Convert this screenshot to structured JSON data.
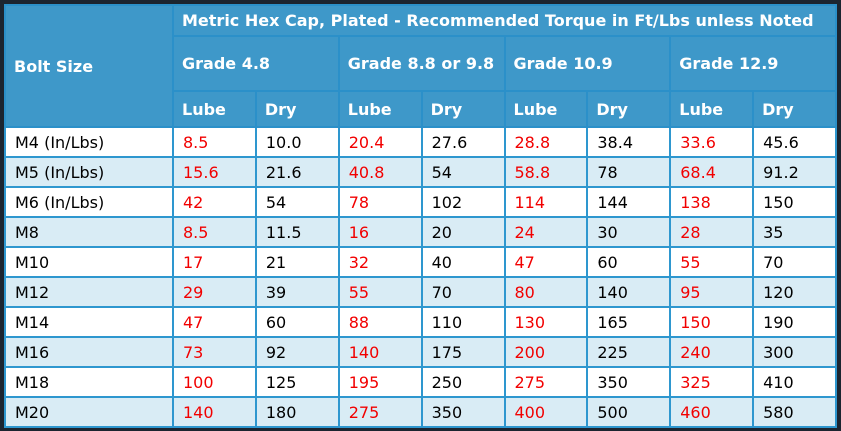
{
  "chart_data": {
    "type": "table",
    "title": "Metric Hex Cap, Plated - Recommended Torque in Ft/Lbs unless Noted",
    "corner_header": "Bolt Size",
    "grade_groups": [
      "Grade 4.8",
      "Grade 8.8 or 9.8",
      "Grade 10.9",
      "Grade 12.9"
    ],
    "sub_columns": [
      "Lube",
      "Dry",
      "Lube",
      "Dry",
      "Lube",
      "Dry",
      "Lube",
      "Dry"
    ],
    "rows": [
      {
        "bolt": "M4 (In/Lbs)",
        "values": [
          "8.5",
          "10.0",
          "20.4",
          "27.6",
          "28.8",
          "38.4",
          "33.6",
          "45.6"
        ]
      },
      {
        "bolt": "M5 (In/Lbs)",
        "values": [
          "15.6",
          "21.6",
          "40.8",
          "54",
          "58.8",
          "78",
          "68.4",
          "91.2"
        ]
      },
      {
        "bolt": "M6 (In/Lbs)",
        "values": [
          "42",
          "54",
          "78",
          "102",
          "114",
          "144",
          "138",
          "150"
        ]
      },
      {
        "bolt": "M8",
        "values": [
          "8.5",
          "11.5",
          "16",
          "20",
          "24",
          "30",
          "28",
          "35"
        ]
      },
      {
        "bolt": "M10",
        "values": [
          "17",
          "21",
          "32",
          "40",
          "47",
          "60",
          "55",
          "70"
        ]
      },
      {
        "bolt": "M12",
        "values": [
          "29",
          "39",
          "55",
          "70",
          "80",
          "140",
          "95",
          "120"
        ]
      },
      {
        "bolt": "M14",
        "values": [
          "47",
          "60",
          "88",
          "110",
          "130",
          "165",
          "150",
          "190"
        ]
      },
      {
        "bolt": "M16",
        "values": [
          "73",
          "92",
          "140",
          "175",
          "200",
          "225",
          "240",
          "300"
        ]
      },
      {
        "bolt": "M18",
        "values": [
          "100",
          "125",
          "195",
          "250",
          "275",
          "350",
          "325",
          "410"
        ]
      },
      {
        "bolt": "M20",
        "values": [
          "140",
          "180",
          "275",
          "350",
          "400",
          "500",
          "460",
          "580"
        ]
      }
    ]
  },
  "colors": {
    "header_bg": "#3e98c9",
    "grid_border": "#2e97cf",
    "outer_border": "#1c2530",
    "row_bg": "#ffffff",
    "row_alt_bg": "#d9ecf5",
    "lube_value_text": "#f20000",
    "dry_value_text": "#000000",
    "header_text": "#ffffff"
  }
}
